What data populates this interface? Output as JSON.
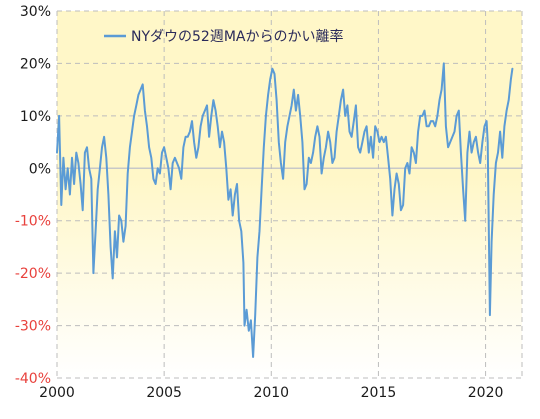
{
  "colors": {
    "series": "#5b9bd5",
    "negative_tick": "#e8413c",
    "positive_tick": "#1a1a1a",
    "grid": "#bdbdbd",
    "zero_line": "#c8c8c8",
    "bg_top": "#fff7c8",
    "bg_bottom": "#ffffff"
  },
  "chart_data": {
    "type": "line",
    "title": "",
    "xlabel": "",
    "ylabel": "",
    "xlim": [
      2000,
      2021.7
    ],
    "ylim": [
      -40,
      30
    ],
    "grid": true,
    "legend_position": "top-left",
    "y_ticks": [
      {
        "value": 30,
        "label": "30%"
      },
      {
        "value": 20,
        "label": "20%"
      },
      {
        "value": 10,
        "label": "10%"
      },
      {
        "value": 0,
        "label": "0%"
      },
      {
        "value": -10,
        "label": "-10%"
      },
      {
        "value": -20,
        "label": "-20%"
      },
      {
        "value": -30,
        "label": "-30%"
      },
      {
        "value": -40,
        "label": "-40%"
      }
    ],
    "x_ticks": [
      {
        "value": 2000,
        "label": "2000"
      },
      {
        "value": 2005,
        "label": "2005"
      },
      {
        "value": 2010,
        "label": "2010"
      },
      {
        "value": 2015,
        "label": "2015"
      },
      {
        "value": 2020,
        "label": "2020"
      }
    ],
    "series": [
      {
        "name": "NYダウの52週MAからのかい離率",
        "points": [
          [
            2000.0,
            3
          ],
          [
            2000.1,
            10
          ],
          [
            2000.2,
            -7
          ],
          [
            2000.3,
            2
          ],
          [
            2000.4,
            -4
          ],
          [
            2000.5,
            0
          ],
          [
            2000.6,
            -5
          ],
          [
            2000.7,
            2
          ],
          [
            2000.8,
            -3
          ],
          [
            2000.9,
            3
          ],
          [
            2001.0,
            1
          ],
          [
            2001.1,
            -3
          ],
          [
            2001.2,
            -8
          ],
          [
            2001.3,
            3
          ],
          [
            2001.4,
            4
          ],
          [
            2001.5,
            0
          ],
          [
            2001.6,
            -2
          ],
          [
            2001.7,
            -20
          ],
          [
            2001.8,
            -12
          ],
          [
            2001.9,
            -4
          ],
          [
            2002.0,
            0
          ],
          [
            2002.1,
            4
          ],
          [
            2002.2,
            6
          ],
          [
            2002.3,
            2
          ],
          [
            2002.4,
            -5
          ],
          [
            2002.5,
            -15
          ],
          [
            2002.6,
            -21
          ],
          [
            2002.7,
            -12
          ],
          [
            2002.8,
            -17
          ],
          [
            2002.9,
            -9
          ],
          [
            2003.0,
            -10
          ],
          [
            2003.1,
            -14
          ],
          [
            2003.2,
            -11
          ],
          [
            2003.3,
            -1
          ],
          [
            2003.4,
            4
          ],
          [
            2003.5,
            7
          ],
          [
            2003.6,
            10
          ],
          [
            2003.7,
            12
          ],
          [
            2003.8,
            14
          ],
          [
            2003.9,
            15
          ],
          [
            2004.0,
            16
          ],
          [
            2004.1,
            11
          ],
          [
            2004.2,
            8
          ],
          [
            2004.3,
            4
          ],
          [
            2004.4,
            2
          ],
          [
            2004.5,
            -2
          ],
          [
            2004.6,
            -3
          ],
          [
            2004.7,
            0
          ],
          [
            2004.8,
            -1
          ],
          [
            2004.9,
            3
          ],
          [
            2005.0,
            4
          ],
          [
            2005.1,
            2
          ],
          [
            2005.2,
            0
          ],
          [
            2005.3,
            -4
          ],
          [
            2005.4,
            1
          ],
          [
            2005.5,
            2
          ],
          [
            2005.6,
            1
          ],
          [
            2005.7,
            0
          ],
          [
            2005.8,
            -2
          ],
          [
            2005.9,
            4
          ],
          [
            2006.0,
            6
          ],
          [
            2006.1,
            6
          ],
          [
            2006.2,
            7
          ],
          [
            2006.3,
            9
          ],
          [
            2006.4,
            5
          ],
          [
            2006.5,
            2
          ],
          [
            2006.6,
            4
          ],
          [
            2006.7,
            8
          ],
          [
            2006.8,
            10
          ],
          [
            2006.9,
            11
          ],
          [
            2007.0,
            12
          ],
          [
            2007.1,
            6
          ],
          [
            2007.2,
            10
          ],
          [
            2007.3,
            13
          ],
          [
            2007.4,
            11
          ],
          [
            2007.5,
            8
          ],
          [
            2007.6,
            4
          ],
          [
            2007.7,
            7
          ],
          [
            2007.8,
            5
          ],
          [
            2007.9,
            0
          ],
          [
            2008.0,
            -6
          ],
          [
            2008.1,
            -4
          ],
          [
            2008.2,
            -9
          ],
          [
            2008.3,
            -5
          ],
          [
            2008.4,
            -3
          ],
          [
            2008.5,
            -10
          ],
          [
            2008.6,
            -12
          ],
          [
            2008.7,
            -18
          ],
          [
            2008.75,
            -30
          ],
          [
            2008.85,
            -27
          ],
          [
            2008.95,
            -31
          ],
          [
            2009.05,
            -29
          ],
          [
            2009.15,
            -36
          ],
          [
            2009.25,
            -28
          ],
          [
            2009.35,
            -17
          ],
          [
            2009.45,
            -12
          ],
          [
            2009.55,
            -4
          ],
          [
            2009.65,
            4
          ],
          [
            2009.75,
            10
          ],
          [
            2009.85,
            14
          ],
          [
            2009.95,
            17
          ],
          [
            2010.05,
            19
          ],
          [
            2010.15,
            18
          ],
          [
            2010.25,
            13
          ],
          [
            2010.35,
            5
          ],
          [
            2010.45,
            1
          ],
          [
            2010.55,
            -2
          ],
          [
            2010.65,
            5
          ],
          [
            2010.75,
            8
          ],
          [
            2010.85,
            10
          ],
          [
            2010.95,
            12
          ],
          [
            2011.05,
            15
          ],
          [
            2011.15,
            11
          ],
          [
            2011.25,
            14
          ],
          [
            2011.35,
            10
          ],
          [
            2011.45,
            5
          ],
          [
            2011.55,
            -4
          ],
          [
            2011.65,
            -3
          ],
          [
            2011.75,
            2
          ],
          [
            2011.85,
            1
          ],
          [
            2011.95,
            3
          ],
          [
            2012.05,
            6
          ],
          [
            2012.15,
            8
          ],
          [
            2012.25,
            6
          ],
          [
            2012.35,
            -1
          ],
          [
            2012.45,
            2
          ],
          [
            2012.55,
            4
          ],
          [
            2012.65,
            7
          ],
          [
            2012.75,
            5
          ],
          [
            2012.85,
            1
          ],
          [
            2012.95,
            2
          ],
          [
            2013.05,
            7
          ],
          [
            2013.15,
            10
          ],
          [
            2013.25,
            13
          ],
          [
            2013.35,
            15
          ],
          [
            2013.45,
            10
          ],
          [
            2013.55,
            12
          ],
          [
            2013.65,
            7
          ],
          [
            2013.75,
            6
          ],
          [
            2013.85,
            9
          ],
          [
            2013.95,
            12
          ],
          [
            2014.05,
            4
          ],
          [
            2014.15,
            3
          ],
          [
            2014.25,
            5
          ],
          [
            2014.35,
            7
          ],
          [
            2014.45,
            8
          ],
          [
            2014.55,
            3
          ],
          [
            2014.65,
            6
          ],
          [
            2014.75,
            2
          ],
          [
            2014.85,
            8
          ],
          [
            2014.95,
            7
          ],
          [
            2015.05,
            5
          ],
          [
            2015.15,
            6
          ],
          [
            2015.25,
            5
          ],
          [
            2015.35,
            6
          ],
          [
            2015.45,
            2
          ],
          [
            2015.55,
            -2
          ],
          [
            2015.65,
            -9
          ],
          [
            2015.75,
            -4
          ],
          [
            2015.85,
            -1
          ],
          [
            2015.95,
            -3
          ],
          [
            2016.05,
            -8
          ],
          [
            2016.15,
            -7
          ],
          [
            2016.25,
            0
          ],
          [
            2016.35,
            1
          ],
          [
            2016.45,
            -1
          ],
          [
            2016.55,
            4
          ],
          [
            2016.65,
            3
          ],
          [
            2016.75,
            1
          ],
          [
            2016.85,
            7
          ],
          [
            2016.95,
            10
          ],
          [
            2017.05,
            10
          ],
          [
            2017.15,
            11
          ],
          [
            2017.25,
            8
          ],
          [
            2017.35,
            8
          ],
          [
            2017.45,
            9
          ],
          [
            2017.55,
            9
          ],
          [
            2017.65,
            8
          ],
          [
            2017.75,
            10
          ],
          [
            2017.85,
            13
          ],
          [
            2017.95,
            15
          ],
          [
            2018.05,
            20
          ],
          [
            2018.15,
            8
          ],
          [
            2018.25,
            4
          ],
          [
            2018.35,
            5
          ],
          [
            2018.45,
            6
          ],
          [
            2018.55,
            7
          ],
          [
            2018.65,
            10
          ],
          [
            2018.75,
            11
          ],
          [
            2018.85,
            3
          ],
          [
            2018.95,
            -4
          ],
          [
            2019.05,
            -10
          ],
          [
            2019.15,
            3
          ],
          [
            2019.25,
            7
          ],
          [
            2019.35,
            3
          ],
          [
            2019.45,
            5
          ],
          [
            2019.55,
            6
          ],
          [
            2019.65,
            3
          ],
          [
            2019.75,
            1
          ],
          [
            2019.85,
            5
          ],
          [
            2019.95,
            8
          ],
          [
            2020.05,
            9
          ],
          [
            2020.1,
            5
          ],
          [
            2020.2,
            -28
          ],
          [
            2020.28,
            -14
          ],
          [
            2020.38,
            -5
          ],
          [
            2020.48,
            1
          ],
          [
            2020.58,
            3
          ],
          [
            2020.68,
            7
          ],
          [
            2020.78,
            2
          ],
          [
            2020.88,
            8
          ],
          [
            2020.98,
            11
          ],
          [
            2021.08,
            13
          ],
          [
            2021.18,
            17
          ],
          [
            2021.25,
            19
          ]
        ]
      }
    ]
  }
}
